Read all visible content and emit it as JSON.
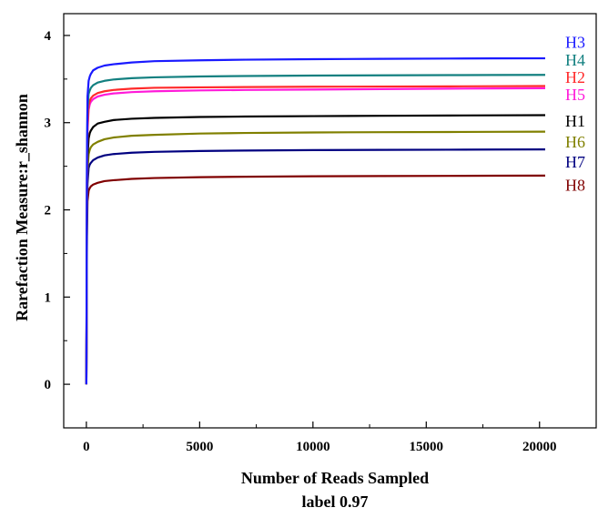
{
  "chart_data": {
    "type": "line",
    "title": "",
    "xlabel": "Number of  Reads Sampled",
    "xlabel_sub": "label 0.97",
    "ylabel": "Rarefaction Measure:r_shannon",
    "xlim": [
      -1000,
      22500
    ],
    "ylim": [
      -0.5,
      4.25
    ],
    "xticks": [
      0,
      5000,
      10000,
      15000,
      20000
    ],
    "yticks": [
      0,
      1,
      2,
      3,
      4
    ],
    "grid": false,
    "legend": "inline-right",
    "x": [
      0,
      25,
      50,
      100,
      150,
      200,
      300,
      500,
      800,
      1200,
      2000,
      3000,
      5000,
      7000,
      10000,
      13000,
      16000,
      18000,
      20250
    ],
    "series": [
      {
        "name": "H3",
        "color": "#1a1aff",
        "values": [
          0,
          2.6,
          3.3,
          3.48,
          3.53,
          3.56,
          3.6,
          3.63,
          3.655,
          3.67,
          3.69,
          3.705,
          3.715,
          3.722,
          3.728,
          3.732,
          3.735,
          3.737,
          3.738
        ]
      },
      {
        "name": "H4",
        "color": "#138080",
        "values": [
          0,
          2.5,
          3.15,
          3.33,
          3.37,
          3.4,
          3.43,
          3.46,
          3.48,
          3.495,
          3.51,
          3.52,
          3.53,
          3.535,
          3.54,
          3.543,
          3.545,
          3.547,
          3.548
        ]
      },
      {
        "name": "H2",
        "color": "#ff2a2a",
        "values": [
          0,
          2.35,
          2.95,
          3.2,
          3.25,
          3.28,
          3.31,
          3.34,
          3.36,
          3.375,
          3.39,
          3.4,
          3.405,
          3.408,
          3.412,
          3.414,
          3.416,
          3.418,
          3.42
        ]
      },
      {
        "name": "H5",
        "color": "#ff1ad9",
        "values": [
          0,
          2.3,
          2.9,
          3.15,
          3.21,
          3.24,
          3.27,
          3.3,
          3.32,
          3.335,
          3.35,
          3.36,
          3.37,
          3.375,
          3.38,
          3.385,
          3.39,
          3.393,
          3.395
        ]
      },
      {
        "name": "H1",
        "color": "#000000",
        "values": [
          0,
          2.1,
          2.6,
          2.82,
          2.88,
          2.91,
          2.95,
          2.99,
          3.01,
          3.03,
          3.045,
          3.055,
          3.065,
          3.07,
          3.075,
          3.079,
          3.082,
          3.084,
          3.086
        ]
      },
      {
        "name": "H6",
        "color": "#808000",
        "values": [
          0,
          1.95,
          2.45,
          2.64,
          2.69,
          2.72,
          2.75,
          2.78,
          2.81,
          2.83,
          2.85,
          2.86,
          2.875,
          2.882,
          2.888,
          2.891,
          2.893,
          2.895,
          2.897
        ]
      },
      {
        "name": "H7",
        "color": "#000080",
        "values": [
          0,
          1.85,
          2.3,
          2.48,
          2.52,
          2.54,
          2.57,
          2.6,
          2.625,
          2.64,
          2.655,
          2.665,
          2.675,
          2.68,
          2.685,
          2.688,
          2.69,
          2.692,
          2.693
        ]
      },
      {
        "name": "H8",
        "color": "#800000",
        "values": [
          0,
          1.7,
          2.1,
          2.22,
          2.25,
          2.27,
          2.29,
          2.31,
          2.33,
          2.34,
          2.355,
          2.365,
          2.375,
          2.38,
          2.385,
          2.388,
          2.39,
          2.392,
          2.393
        ]
      }
    ],
    "labels": [
      {
        "text": "H3",
        "color": "#1a1aff",
        "y": 3.92
      },
      {
        "text": "H4",
        "color": "#138080",
        "y": 3.72
      },
      {
        "text": "H2",
        "color": "#ff2a2a",
        "y": 3.52
      },
      {
        "text": "H5",
        "color": "#ff1ad9",
        "y": 3.32
      },
      {
        "text": "H1",
        "color": "#000000",
        "y": 3.02
      },
      {
        "text": "H6",
        "color": "#808000",
        "y": 2.78
      },
      {
        "text": "H7",
        "color": "#000080",
        "y": 2.55
      },
      {
        "text": "H8",
        "color": "#800000",
        "y": 2.28
      }
    ]
  }
}
